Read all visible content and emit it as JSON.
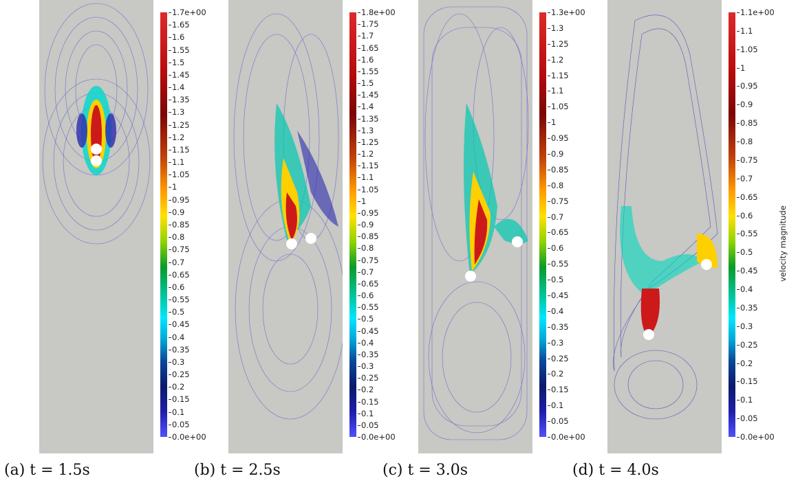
{
  "panels": [
    {
      "caption": "(a) t = 1.5s",
      "colorbar_labels": [
        "1.7e+00",
        "1.65",
        "1.6",
        "1.55",
        "1.5",
        "1.45",
        "1.4",
        "1.35",
        "1.3",
        "1.25",
        "1.2",
        "1.15",
        "1.1",
        "1.05",
        "1",
        "0.95",
        "0.9",
        "0.85",
        "0.8",
        "0.75",
        "0.7",
        "0.65",
        "0.6",
        "0.55",
        "0.5",
        "0.45",
        "0.4",
        "0.35",
        "0.3",
        "0.25",
        "0.2",
        "0.15",
        "0.1",
        "0.05",
        "0.0e+00"
      ]
    },
    {
      "caption": "(b) t = 2.5s",
      "colorbar_labels": [
        "1.8e+00",
        "1.75",
        "1.7",
        "1.65",
        "1.6",
        "1.55",
        "1.5",
        "1.45",
        "1.4",
        "1.35",
        "1.3",
        "1.25",
        "1.2",
        "1.15",
        "1.1",
        "1.05",
        "1",
        "0.95",
        "0.9",
        "0.85",
        "0.8",
        "0.75",
        "0.7",
        "0.65",
        "0.6",
        "0.55",
        "0.5",
        "0.45",
        "0.4",
        "0.35",
        "0.3",
        "0.25",
        "0.2",
        "0.15",
        "0.1",
        "0.05",
        "0.0e+00"
      ]
    },
    {
      "caption": "(c) t = 3.0s",
      "colorbar_labels": [
        "1.3e+00",
        "1.3",
        "1.25",
        "1.2",
        "1.15",
        "1.1",
        "1.05",
        "1",
        "0.95",
        "0.9",
        "0.85",
        "0.8",
        "0.75",
        "0.7",
        "0.65",
        "0.6",
        "0.55",
        "0.5",
        "0.45",
        "0.4",
        "0.35",
        "0.3",
        "0.25",
        "0.2",
        "0.15",
        "0.1",
        "0.05",
        "0.0e+00"
      ]
    },
    {
      "caption": "(d) t = 4.0s",
      "colorbar_labels": [
        "1.1e+00",
        "1.1",
        "1.05",
        "1",
        "0.95",
        "0.9",
        "0.85",
        "0.8",
        "0.75",
        "0.7",
        "0.65",
        "0.6",
        "0.55",
        "0.5",
        "0.45",
        "0.4",
        "0.35",
        "0.3",
        "0.25",
        "0.2",
        "0.15",
        "0.1",
        "0.05",
        "0.0e+00"
      ]
    }
  ],
  "colorbar_title": "velocity magnitude",
  "colors": {
    "background": "#c8c8c4",
    "streamline": "#4444cc",
    "particle": "#ffffff"
  }
}
